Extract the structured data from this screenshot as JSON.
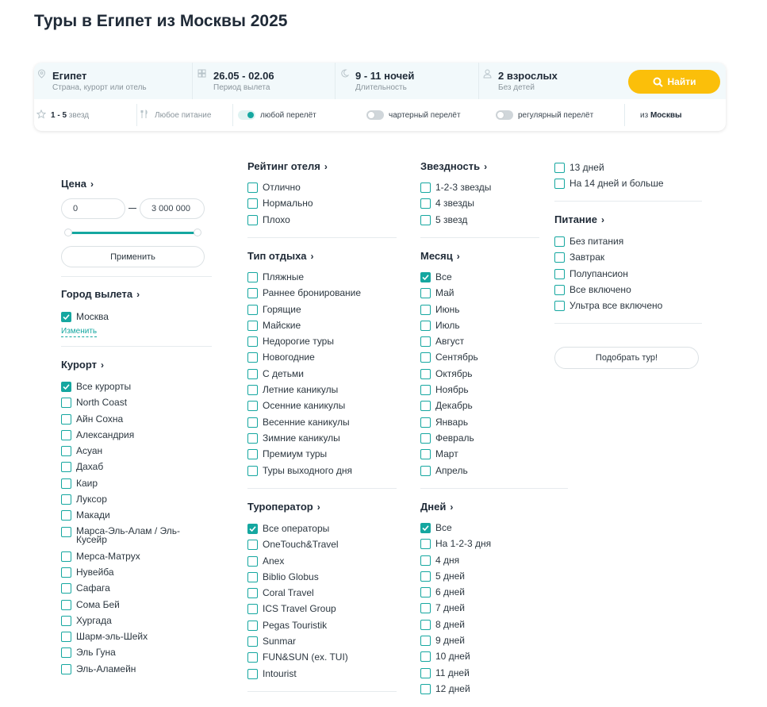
{
  "page": {
    "title": "Туры в Египет из Москвы 2025"
  },
  "search": {
    "destination": {
      "value": "Египет",
      "sub": "Страна, курорт или отель",
      "icon": "location-pin-icon"
    },
    "dates": {
      "value": "26.05 - 02.06",
      "sub": "Период вылета",
      "icon": "calendar-icon"
    },
    "duration": {
      "value": "9 - 11 ночей",
      "sub": "Длительность",
      "icon": "moon-icon"
    },
    "tourists": {
      "value": "2 взрослых",
      "sub": "Без детей",
      "icon": "person-icon"
    },
    "find_label": "Найти",
    "stars_bold": "1 - 5",
    "stars_rest": " звезд",
    "food": "Любое питание",
    "any_flight": "любой перелёт",
    "charter_flight": "чартерный перелёт",
    "regular_flight": "регулярный перелёт",
    "from_prefix": "из ",
    "from_city": "Москвы"
  },
  "filters": {
    "price": {
      "title": "Цена",
      "min": "0",
      "max": "3 000 000",
      "apply": "Применить"
    },
    "departure": {
      "title": "Город вылета",
      "items": [
        "Москва"
      ],
      "change": "Изменить"
    },
    "resort": {
      "title": "Курорт",
      "items": [
        "Все курорты",
        "North Coast",
        "Айн Сохна",
        "Александрия",
        "Асуан",
        "Дахаб",
        "Каир",
        "Луксор",
        "Макади",
        "Марса-Эль-Алам / Эль-Кусейр",
        "Мерса-Матрух",
        "Нувейба",
        "Сафага",
        "Сома Бей",
        "Хургада",
        "Шарм-эль-Шейх",
        "Эль Гуна",
        "Эль-Аламейн"
      ]
    },
    "rating": {
      "title": "Рейтинг отеля",
      "items": [
        "Отлично",
        "Нормально",
        "Плохо"
      ]
    },
    "rest_type": {
      "title": "Тип отдыха",
      "items": [
        "Пляжные",
        "Раннее бронирование",
        "Горящие",
        "Майские",
        "Недорогие туры",
        "Новогодние",
        "С детьми",
        "Летние каникулы",
        "Осенние каникулы",
        "Весенние каникулы",
        "Зимние каникулы",
        "Премиум туры",
        "Туры выходного дня"
      ]
    },
    "operator": {
      "title": "Туроператор",
      "items": [
        "Все операторы",
        "OneTouch&Travel",
        "Anex",
        "Biblio Globus",
        "Coral Travel",
        "ICS Travel Group",
        "Pegas Touristik",
        "Sunmar",
        "FUN&SUN (ex. TUI)",
        "Intourist"
      ]
    },
    "stars": {
      "title": "Звездность",
      "items": [
        "1-2-3 звезды",
        "4 звезды",
        "5 звезд"
      ]
    },
    "month": {
      "title": "Месяц",
      "items": [
        "Все",
        "Май",
        "Июнь",
        "Июль",
        "Август",
        "Сентябрь",
        "Октябрь",
        "Ноябрь",
        "Декабрь",
        "Январь",
        "Февраль",
        "Март",
        "Апрель"
      ]
    },
    "days": {
      "title": "Дней",
      "items": [
        "Все",
        "На 1-2-3 дня",
        "4 дня",
        "5 дней",
        "6 дней",
        "7 дней",
        "8 дней",
        "9 дней",
        "10 дней",
        "11 дней",
        "12 дней"
      ]
    },
    "days_more": {
      "items": [
        "13 дней",
        "На 14 дней и больше"
      ]
    },
    "meals": {
      "title": "Питание",
      "items": [
        "Без питания",
        "Завтрак",
        "Полупансион",
        "Все включено",
        "Ультра все включено"
      ]
    },
    "pick_tour": "Подобрать тур!"
  },
  "colors": {
    "accent": "#15a7a0",
    "button": "#fbbf0a",
    "text": "#1f2a37"
  }
}
